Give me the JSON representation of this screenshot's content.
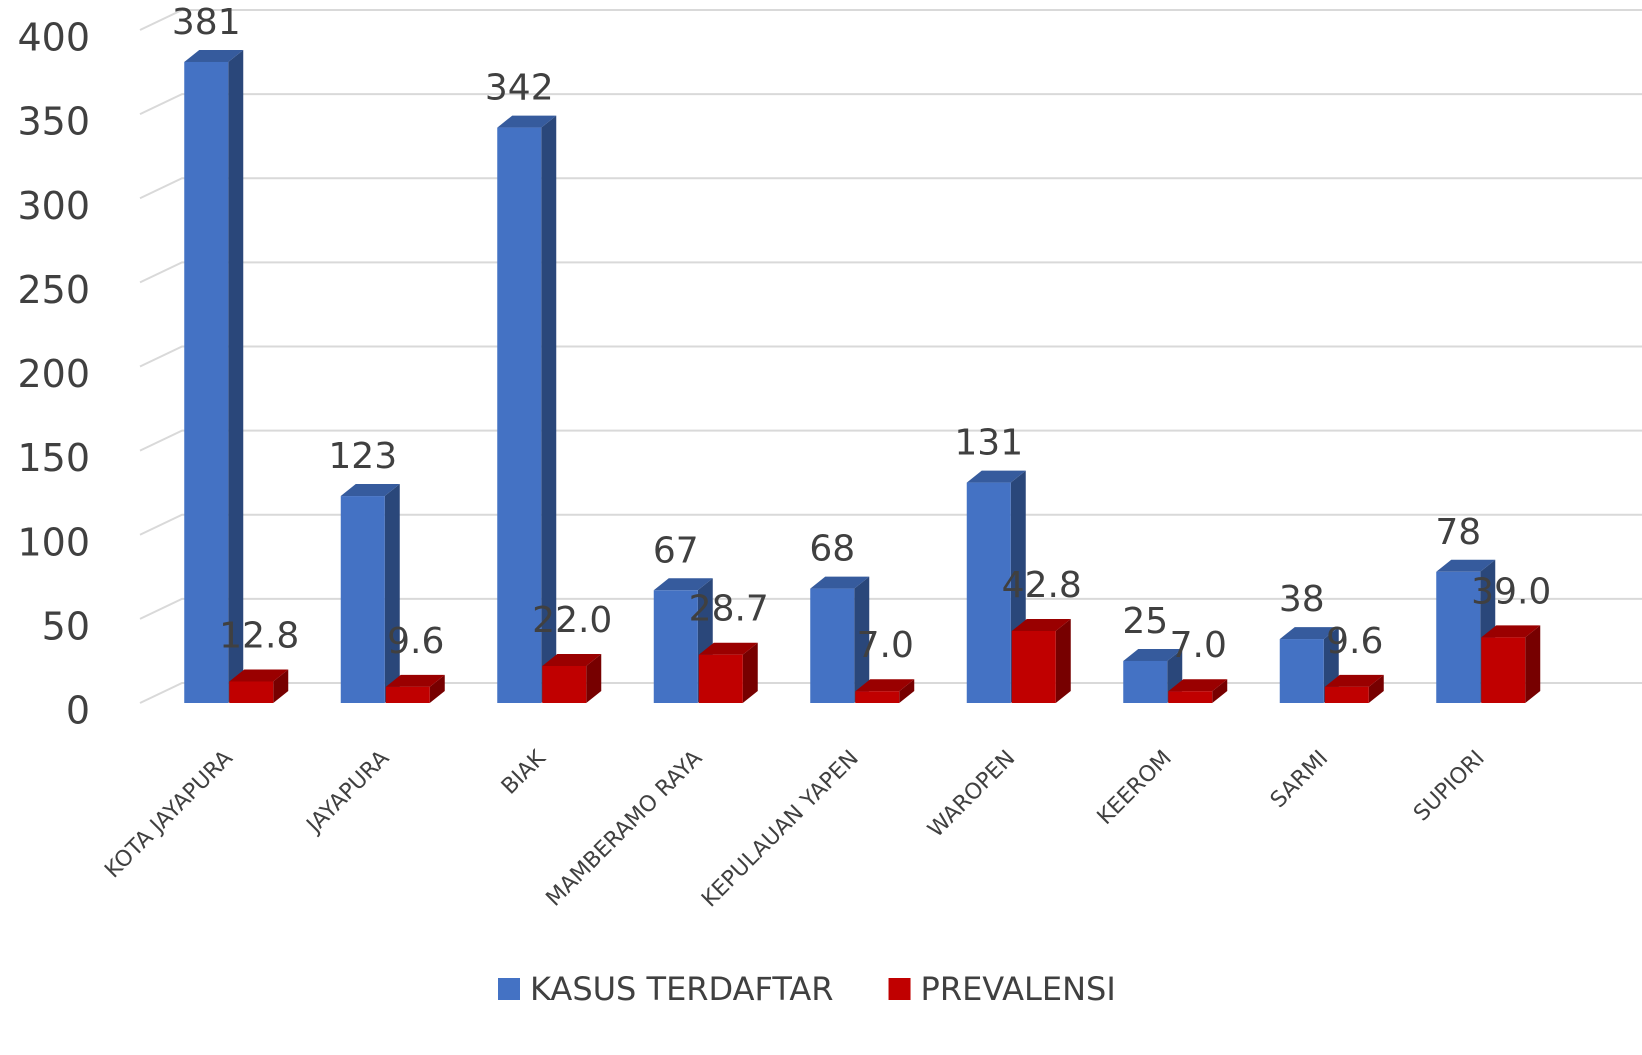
{
  "chart_data": {
    "type": "bar3d",
    "categories": [
      "KOTA JAYAPURA",
      "JAYAPURA",
      "BIAK",
      "MAMBERAMO RAYA",
      "KEPULAUAN YAPEN",
      "WAROPEN",
      "KEEROM",
      "SARMI",
      "SUPIORI"
    ],
    "series": [
      {
        "name": "KASUS TERDAFTAR",
        "color": "#4472c4",
        "values": [
          381,
          123,
          342,
          67,
          68,
          131,
          25,
          38,
          78
        ]
      },
      {
        "name": "PREVALENSI",
        "color": "#c00000",
        "values": [
          12.8,
          9.6,
          22.0,
          28.7,
          7.0,
          42.8,
          7.0,
          9.6,
          39.0
        ],
        "value_labels": [
          "12.8",
          "9.6",
          "22.0",
          "28.7",
          "7.0",
          "42.8",
          "7.0",
          "9.6",
          "39.0"
        ]
      }
    ],
    "ylim": [
      0,
      400
    ],
    "yticks": [
      0,
      50,
      100,
      150,
      200,
      250,
      300,
      350,
      400
    ],
    "grid": true,
    "legend": "bottom"
  }
}
